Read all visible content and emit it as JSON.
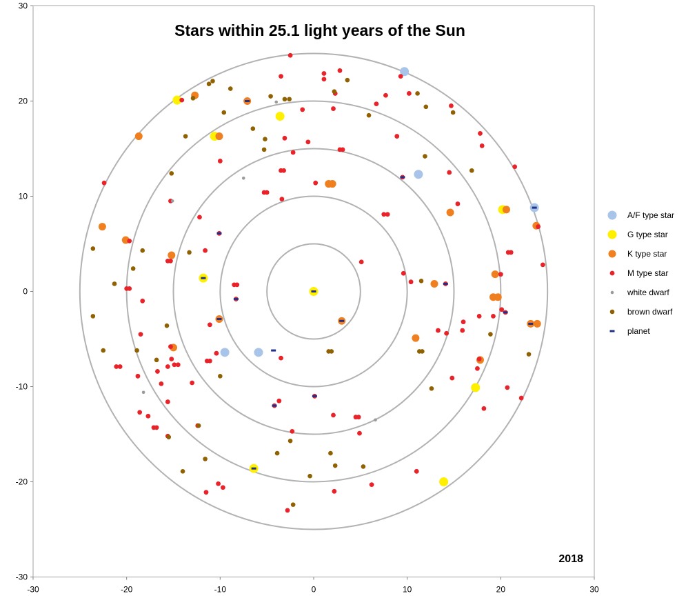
{
  "chart_data": {
    "type": "scatter",
    "title": "Stars within 25.1 light years of the Sun",
    "annotation": "2018",
    "xlabel": "",
    "ylabel": "",
    "xlim": [
      -30,
      30
    ],
    "ylim": [
      -30,
      30
    ],
    "x_ticks": [
      -30,
      -20,
      -10,
      0,
      10,
      20,
      30
    ],
    "y_ticks": [
      30,
      20,
      10,
      0,
      -10,
      -20,
      -30
    ],
    "grid": false,
    "legend_position": "right",
    "reference_circles_radius": [
      5,
      10,
      15,
      20,
      25
    ],
    "series": [
      {
        "name": "A/F type star",
        "color": "#a9c4e9",
        "points": [
          [
            9.7,
            23.1
          ],
          [
            11.2,
            12.3
          ],
          [
            23.6,
            8.8
          ],
          [
            -9.5,
            -6.4
          ],
          [
            -5.9,
            -6.4
          ]
        ]
      },
      {
        "name": "G type star",
        "color": "#ffef00",
        "points": [
          [
            -14.6,
            20.1
          ],
          [
            -3.6,
            18.4
          ],
          [
            -10.6,
            16.3
          ],
          [
            0,
            0
          ],
          [
            -11.8,
            1.4
          ],
          [
            20.2,
            8.6
          ],
          [
            17.3,
            -10.1
          ],
          [
            -6.4,
            -18.6
          ],
          [
            13.9,
            -20.0
          ]
        ]
      },
      {
        "name": "K type star",
        "color": "#f07f1f",
        "points": [
          [
            -12.7,
            20.6
          ],
          [
            -7.1,
            20.0
          ],
          [
            -18.7,
            16.3
          ],
          [
            -10.1,
            16.3
          ],
          [
            1.6,
            11.3
          ],
          [
            2.0,
            11.3
          ],
          [
            14.6,
            8.3
          ],
          [
            20.6,
            8.6
          ],
          [
            23.8,
            6.9
          ],
          [
            -22.6,
            6.8
          ],
          [
            -20.1,
            5.4
          ],
          [
            -15.2,
            3.8
          ],
          [
            19.4,
            1.8
          ],
          [
            12.9,
            0.8
          ],
          [
            19.2,
            -0.6
          ],
          [
            19.7,
            -0.6
          ],
          [
            -10.1,
            -2.9
          ],
          [
            3.0,
            -3.1
          ],
          [
            23.2,
            -3.4
          ],
          [
            23.9,
            -3.4
          ],
          [
            10.9,
            -4.9
          ],
          [
            -15.0,
            -5.9
          ],
          [
            17.8,
            -7.2
          ]
        ]
      },
      {
        "name": "M type star",
        "color": "#e8232a",
        "points": [
          [
            -2.5,
            24.8
          ],
          [
            1.1,
            22.9
          ],
          [
            2.8,
            23.2
          ],
          [
            -3.5,
            22.6
          ],
          [
            1.1,
            22.3
          ],
          [
            9.3,
            22.6
          ],
          [
            7.7,
            20.6
          ],
          [
            10.2,
            20.8
          ],
          [
            2.3,
            20.8
          ],
          [
            -14.1,
            20.1
          ],
          [
            2.1,
            19.2
          ],
          [
            6.7,
            19.7
          ],
          [
            14.7,
            19.5
          ],
          [
            -1.2,
            19.1
          ],
          [
            17.8,
            16.6
          ],
          [
            8.9,
            16.3
          ],
          [
            -3.1,
            16.1
          ],
          [
            -0.6,
            15.7
          ],
          [
            18.0,
            15.3
          ],
          [
            2.8,
            14.9
          ],
          [
            3.1,
            14.9
          ],
          [
            -2.2,
            14.6
          ],
          [
            -10.0,
            13.7
          ],
          [
            21.5,
            13.1
          ],
          [
            -3.5,
            12.7
          ],
          [
            -3.2,
            12.7
          ],
          [
            9.5,
            12.0
          ],
          [
            14.5,
            12.5
          ],
          [
            -22.4,
            11.4
          ],
          [
            0.2,
            11.4
          ],
          [
            -5.3,
            10.4
          ],
          [
            -5.0,
            10.4
          ],
          [
            -15.3,
            9.5
          ],
          [
            -3.4,
            9.7
          ],
          [
            15.4,
            9.2
          ],
          [
            7.5,
            8.1
          ],
          [
            7.9,
            8.1
          ],
          [
            -12.2,
            7.8
          ],
          [
            -10.1,
            6.1
          ],
          [
            20.8,
            4.1
          ],
          [
            21.1,
            4.1
          ],
          [
            24.0,
            6.8
          ],
          [
            -19.7,
            5.3
          ],
          [
            -11.6,
            4.3
          ],
          [
            -15.6,
            3.2
          ],
          [
            -15.3,
            3.2
          ],
          [
            5.1,
            3.1
          ],
          [
            24.5,
            2.8
          ],
          [
            9.6,
            1.9
          ],
          [
            -8.5,
            0.7
          ],
          [
            -8.2,
            0.7
          ],
          [
            10.4,
            1.0
          ],
          [
            14.1,
            0.8
          ],
          [
            20.0,
            1.8
          ],
          [
            -20.0,
            0.3
          ],
          [
            -19.7,
            0.3
          ],
          [
            -18.3,
            -1.0
          ],
          [
            -8.3,
            -0.8
          ],
          [
            20.1,
            -1.9
          ],
          [
            20.5,
            -2.2
          ],
          [
            17.7,
            -2.6
          ],
          [
            19.2,
            -2.6
          ],
          [
            16.0,
            -3.2
          ],
          [
            -11.1,
            -3.5
          ],
          [
            13.3,
            -4.1
          ],
          [
            14.2,
            -4.4
          ],
          [
            15.9,
            -4.1
          ],
          [
            -18.5,
            -4.5
          ],
          [
            -15.3,
            -5.8
          ],
          [
            -10.4,
            -6.5
          ],
          [
            -15.2,
            -7.1
          ],
          [
            -11.4,
            -7.3
          ],
          [
            -11.1,
            -7.3
          ],
          [
            -14.9,
            -7.7
          ],
          [
            -14.5,
            -7.7
          ],
          [
            -15.6,
            -7.9
          ],
          [
            -3.5,
            -7.0
          ],
          [
            17.7,
            -7.1
          ],
          [
            17.5,
            -8.1
          ],
          [
            -21.1,
            -7.9
          ],
          [
            -20.7,
            -7.9
          ],
          [
            -16.7,
            -8.4
          ],
          [
            14.8,
            -9.1
          ],
          [
            -18.8,
            -8.9
          ],
          [
            -16.3,
            -9.7
          ],
          [
            -13.0,
            -9.6
          ],
          [
            20.7,
            -10.1
          ],
          [
            0.1,
            -11.0
          ],
          [
            -3.7,
            -11.5
          ],
          [
            -15.6,
            -11.6
          ],
          [
            22.2,
            -11.2
          ],
          [
            18.2,
            -12.3
          ],
          [
            -4.2,
            -12.0
          ],
          [
            -18.6,
            -12.7
          ],
          [
            -17.7,
            -13.1
          ],
          [
            2.1,
            -13.0
          ],
          [
            4.5,
            -13.2
          ],
          [
            4.8,
            -13.2
          ],
          [
            -17.1,
            -14.3
          ],
          [
            -16.8,
            -14.3
          ],
          [
            -12.4,
            -14.1
          ],
          [
            -2.3,
            -14.7
          ],
          [
            4.9,
            -14.9
          ],
          [
            -15.6,
            -15.2
          ],
          [
            11.0,
            -18.9
          ],
          [
            6.2,
            -20.3
          ],
          [
            -10.2,
            -20.2
          ],
          [
            -9.7,
            -20.6
          ],
          [
            -11.5,
            -21.1
          ],
          [
            2.2,
            -21.0
          ],
          [
            -2.8,
            -23.0
          ]
        ]
      },
      {
        "name": "white dwarf",
        "color": "#9a9a9a",
        "points": [
          [
            -4.0,
            19.9
          ],
          [
            -7.5,
            11.9
          ],
          [
            -15.1,
            9.5
          ],
          [
            -18.2,
            -10.6
          ],
          [
            6.6,
            -13.5
          ]
        ]
      },
      {
        "name": "brown dwarf",
        "color": "#8f6100",
        "points": [
          [
            -10.8,
            22.1
          ],
          [
            -11.2,
            21.8
          ],
          [
            3.6,
            22.2
          ],
          [
            -8.9,
            21.3
          ],
          [
            2.2,
            21.0
          ],
          [
            11.1,
            20.8
          ],
          [
            -12.9,
            20.3
          ],
          [
            -3.1,
            20.2
          ],
          [
            -2.6,
            20.2
          ],
          [
            -4.6,
            20.5
          ],
          [
            12.0,
            19.4
          ],
          [
            14.9,
            18.8
          ],
          [
            -9.6,
            18.8
          ],
          [
            5.9,
            18.5
          ],
          [
            -6.5,
            17.1
          ],
          [
            -5.2,
            16.0
          ],
          [
            -13.7,
            16.3
          ],
          [
            -5.3,
            14.9
          ],
          [
            11.9,
            14.2
          ],
          [
            16.9,
            12.7
          ],
          [
            -15.2,
            12.4
          ],
          [
            -23.6,
            4.5
          ],
          [
            -13.3,
            4.1
          ],
          [
            -18.3,
            4.3
          ],
          [
            -19.3,
            2.4
          ],
          [
            11.5,
            1.1
          ],
          [
            -21.3,
            0.8
          ],
          [
            -23.6,
            -2.6
          ],
          [
            -15.7,
            -3.6
          ],
          [
            1.6,
            -6.3
          ],
          [
            1.9,
            -6.3
          ],
          [
            11.3,
            -6.3
          ],
          [
            11.6,
            -6.3
          ],
          [
            -22.5,
            -6.2
          ],
          [
            -18.9,
            -6.2
          ],
          [
            18.9,
            -4.5
          ],
          [
            23.0,
            -6.6
          ],
          [
            -16.8,
            -7.2
          ],
          [
            -10.0,
            -8.9
          ],
          [
            12.6,
            -10.2
          ],
          [
            -12.3,
            -14.1
          ],
          [
            -2.5,
            -15.7
          ],
          [
            -3.9,
            -17.0
          ],
          [
            1.8,
            -17.0
          ],
          [
            -11.6,
            -17.6
          ],
          [
            5.3,
            -18.4
          ],
          [
            2.3,
            -18.3
          ],
          [
            -14.0,
            -18.9
          ],
          [
            -0.4,
            -19.4
          ],
          [
            -2.2,
            -22.4
          ],
          [
            -15.5,
            -15.3
          ]
        ]
      },
      {
        "name": "planet",
        "color": "#1f2f8a",
        "points": [
          [
            0,
            0
          ],
          [
            -11.8,
            1.4
          ],
          [
            -6.4,
            -18.6
          ],
          [
            -7.1,
            20.0
          ],
          [
            9.5,
            12.0
          ],
          [
            23.6,
            8.8
          ],
          [
            14.1,
            0.8
          ],
          [
            20.5,
            -2.2
          ],
          [
            23.2,
            -3.4
          ],
          [
            3.0,
            -3.1
          ],
          [
            -10.1,
            -2.9
          ],
          [
            -8.3,
            -0.8
          ],
          [
            -10.1,
            6.1
          ],
          [
            -4.2,
            -12.0
          ],
          [
            -4.3,
            -6.2
          ],
          [
            0.1,
            -11.0
          ]
        ]
      }
    ]
  }
}
